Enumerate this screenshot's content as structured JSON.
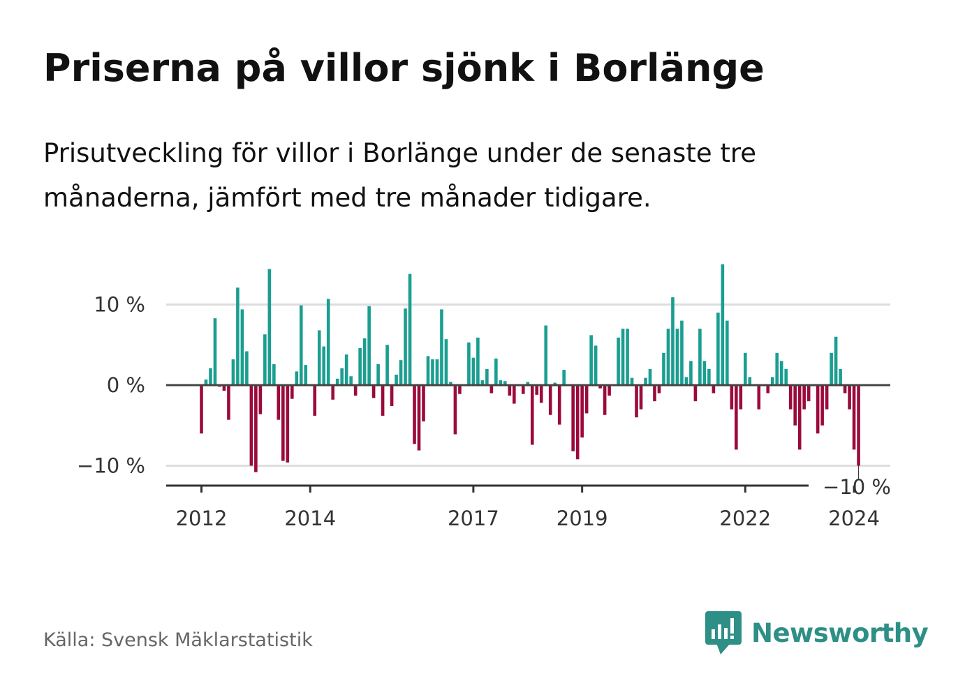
{
  "title": "Priserna på villor sjönk i Borlänge",
  "subtitle": "Prisutveckling för villor i Borlänge under de senaste tre månaderna, jämfört med tre månader tidigare.",
  "source": "Källa: Svensk Mäklarstatistik",
  "brand": "Newsworthy",
  "colors": {
    "positive": "#1a9e91",
    "negative": "#9b0a3c",
    "brand": "#2d8f85",
    "grid": "#dddddd",
    "zero": "#444444"
  },
  "chart_data": {
    "type": "bar",
    "unit": "%",
    "y_ticks": [
      {
        "value": 10,
        "label": "10 %"
      },
      {
        "value": 0,
        "label": "0 %"
      },
      {
        "value": -10,
        "label": "−10 %"
      }
    ],
    "x_ticks": [
      {
        "month_index": 0,
        "label": "2012"
      },
      {
        "month_index": 24,
        "label": "2014"
      },
      {
        "month_index": 60,
        "label": "2017"
      },
      {
        "month_index": 84,
        "label": "2019"
      },
      {
        "month_index": 120,
        "label": "2022"
      },
      {
        "month_index": 144,
        "label": "2024"
      }
    ],
    "last_value_label": "−10 %",
    "ylim": [
      -12.5,
      15
    ],
    "start": "2012-01",
    "values": [
      -6,
      0.7,
      2.1,
      8.3,
      -0.2,
      -0.7,
      -4.3,
      3.2,
      12.1,
      9.4,
      4.2,
      -10,
      -10.8,
      -3.6,
      6.3,
      14.4,
      2.6,
      -4.3,
      -9.4,
      -9.6,
      -1.7,
      1.7,
      9.9,
      2.5,
      0,
      -3.8,
      6.8,
      4.8,
      10.7,
      -1.8,
      0.8,
      2.1,
      3.8,
      1.1,
      -1.3,
      4.6,
      5.8,
      9.8,
      -1.6,
      2.6,
      -3.8,
      5.0,
      -2.6,
      1.3,
      3.1,
      9.5,
      13.8,
      -7.3,
      -8.1,
      -4.5,
      3.6,
      3.2,
      3.2,
      9.4,
      5.7,
      0.4,
      -6.1,
      -1.1,
      0,
      5.3,
      3.4,
      5.9,
      0.6,
      2,
      -1,
      3.3,
      0.6,
      0.5,
      -1.3,
      -2.3,
      0,
      -1.1,
      0.4,
      -7.4,
      -1.2,
      -2.2,
      7.4,
      -3.7,
      0.3,
      -4.9,
      1.9,
      0,
      -8.2,
      -9.2,
      -6.5,
      -3.5,
      6.2,
      4.9,
      -0.4,
      -3.7,
      -1.3,
      0,
      5.9,
      7,
      7,
      0.9,
      -4,
      -3,
      0.9,
      2,
      -2,
      -1,
      4,
      7,
      10.9,
      7,
      8,
      1,
      3,
      -2,
      7,
      3,
      2,
      -1,
      9,
      15,
      8,
      -3,
      -8,
      -3,
      4,
      1,
      0,
      -3,
      0,
      -1,
      1,
      4,
      3,
      2,
      -3,
      -5,
      -8,
      -3,
      -2,
      0,
      -6,
      -5,
      -3,
      4,
      6,
      2,
      -1,
      -3,
      -8,
      -10
    ]
  }
}
